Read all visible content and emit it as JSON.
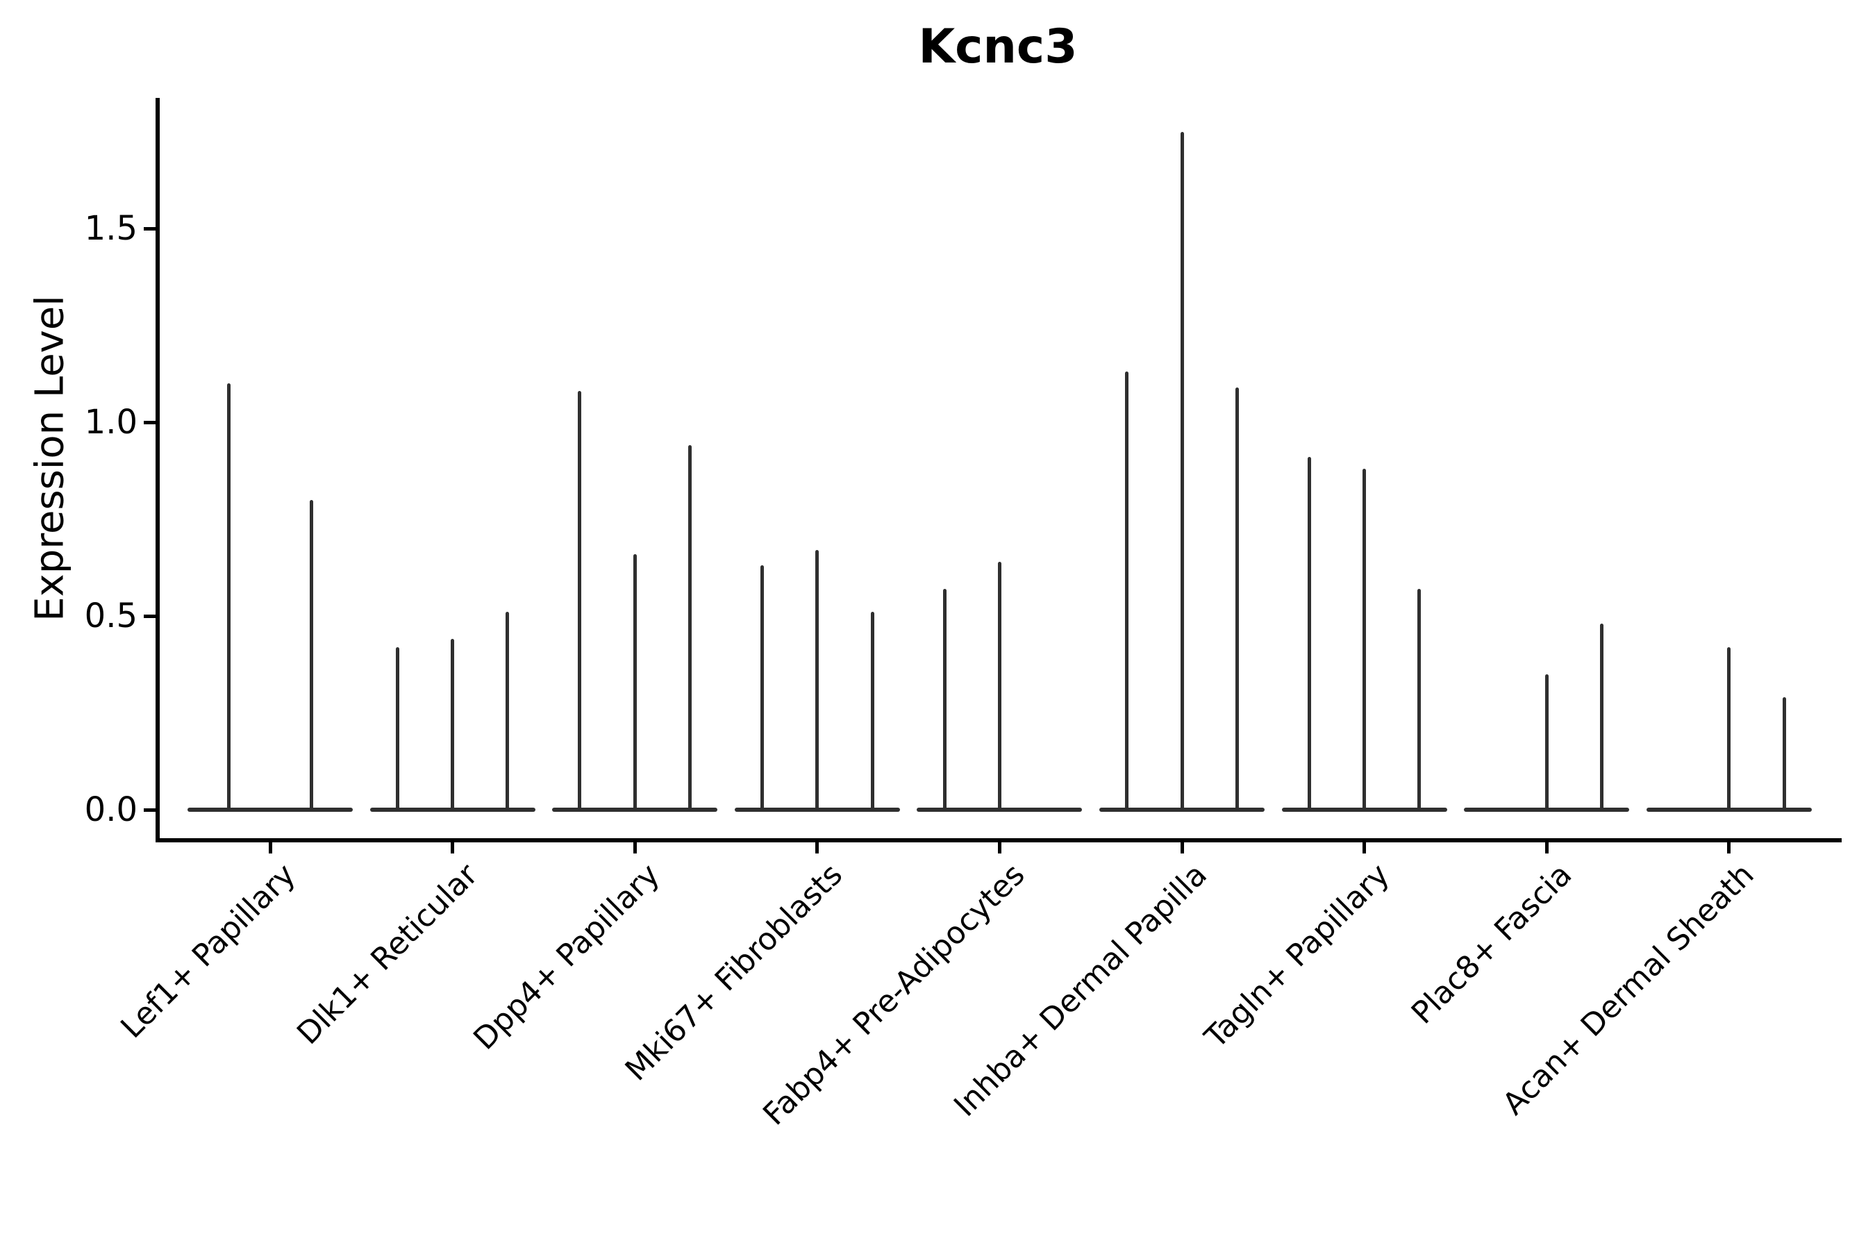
{
  "title": "Kcnc3",
  "y_axis": {
    "label": "Expression Level",
    "tick_labels": [
      "0.0",
      "0.5",
      "1.0",
      "1.5"
    ],
    "tick_values": [
      0.0,
      0.5,
      1.0,
      1.5
    ]
  },
  "chart_data": {
    "type": "violin",
    "title": "Kcnc3",
    "xlabel": "",
    "ylabel": "Expression Level",
    "ylim": [
      -0.08,
      1.84
    ],
    "yticks": [
      0.0,
      0.5,
      1.0,
      1.5
    ],
    "grid": false,
    "legend_position": "none",
    "style_note": "Needle-thin dark violins (sparse single-cell expression); each cell-type category holds 2-3 dodged sub-violins sharing a flat zero-expression base bar; zero entries are sub-violins with no expressed cells (no spike).",
    "categories": [
      "Lef1+ Papillary",
      "Dlk1+ Reticular",
      "Dpp4+ Papillary",
      "Mki67+ Fibroblasts",
      "Fabp4+ Pre-Adipocytes",
      "Inhba+ Dermal Papilla",
      "Tagln+ Papillary",
      "Plac8+ Fascia",
      "Acan+ Dermal Sheath"
    ],
    "violin_max_expression": [
      [
        1.1,
        0.8
      ],
      [
        0.42,
        0.44,
        0.51
      ],
      [
        1.08,
        0.66,
        0.94
      ],
      [
        0.63,
        0.67,
        0.51
      ],
      [
        0.57,
        0.64,
        0.0
      ],
      [
        1.13,
        1.75,
        1.09
      ],
      [
        0.91,
        0.88,
        0.57
      ],
      [
        0.0,
        0.35,
        0.48
      ],
      [
        0.0,
        0.42,
        0.29
      ]
    ],
    "baseline_value": 0.0
  },
  "colors": {
    "violin": "#2f2f2f",
    "axis": "#000000",
    "text": "#000000",
    "background": "#ffffff"
  }
}
